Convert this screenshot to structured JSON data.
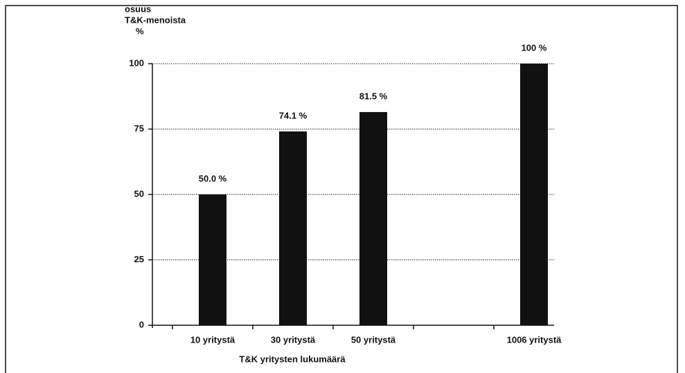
{
  "chart_data": {
    "type": "bar",
    "ylabel": [
      "osuus",
      "T&K-menoista",
      "%"
    ],
    "xlabel": "T&K yritysten lukumäärä",
    "categories": [
      "10 yritystä",
      "30 yritystä",
      "50 yritystä",
      null,
      "1006 yritystä"
    ],
    "values": [
      50.0,
      74.1,
      81.5,
      null,
      100
    ],
    "value_labels": [
      "50.0 %",
      "74.1 %",
      "81.5 %",
      null,
      "100 %"
    ],
    "color": "#111111",
    "ylim": [
      0,
      100
    ],
    "yticks": [
      0,
      25,
      50,
      75,
      100
    ],
    "grid": true
  }
}
